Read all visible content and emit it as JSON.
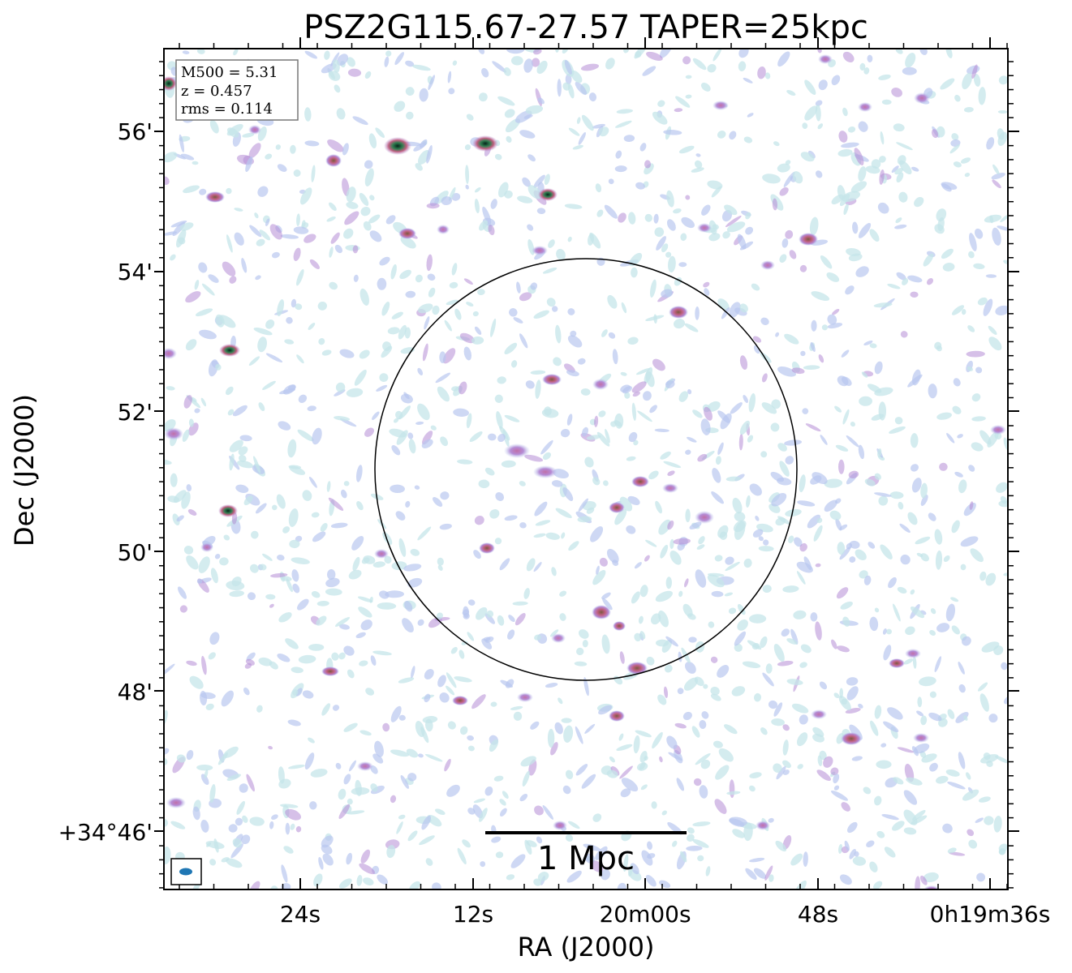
{
  "chart_data": {
    "type": "heatmap",
    "title": "PSZ2G115.67-27.57 TAPER=25kpc",
    "xlabel": "RA (J2000)",
    "ylabel": "Dec (J2000)",
    "x_ticks": [
      "24s",
      "12s",
      "20m00s",
      "48s",
      "0h19m36s"
    ],
    "y_ticks": [
      "56'",
      "54'",
      "52'",
      "50'",
      "48'",
      "+34°46'"
    ],
    "info_box": [
      "M500 = 5.31",
      "z = 0.457",
      "rms = 0.114"
    ],
    "scalebar_label": "1 Mpc",
    "colormap": [
      "#c5e6ea",
      "#b9c8f0",
      "#b58cd6",
      "#c06080",
      "#2e7d4f",
      "#0a3b2a"
    ],
    "grid": false
  }
}
